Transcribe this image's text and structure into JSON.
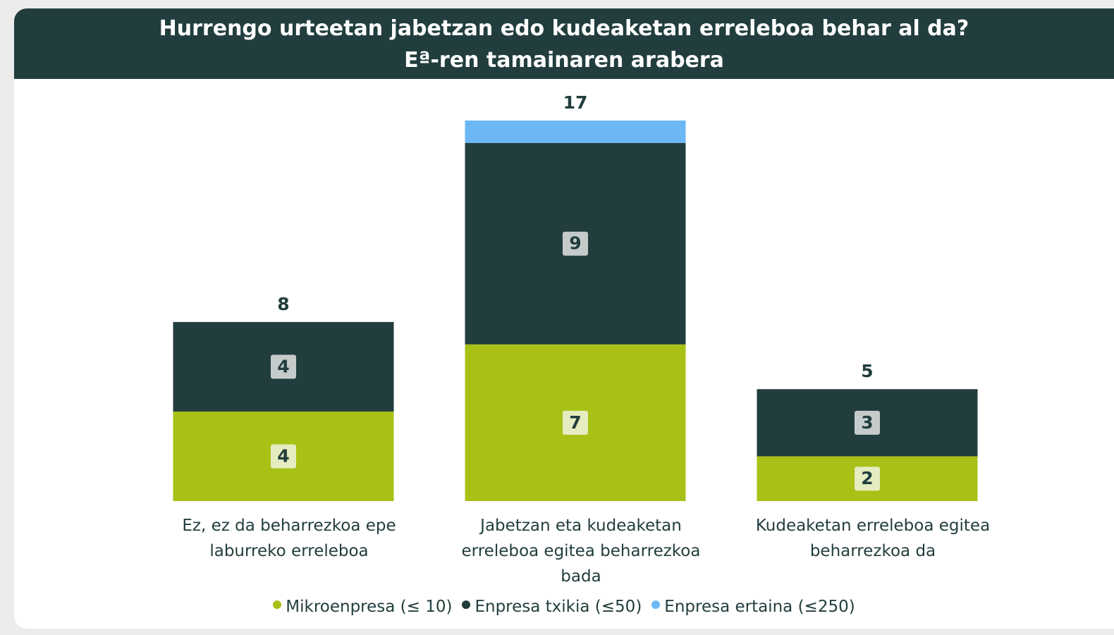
{
  "chart_data": {
    "type": "stacked_bar",
    "title": "Hurrengo urteetan jabetzan edo kudeaketan erreleboa behar al da?",
    "subtitle": "Eª-ren tamainaren arabera",
    "categories": [
      "Ez, ez da beharrezkoa epe laburreko erreleboa",
      "Jabetzan eta kudeaketan erreleboa egitea beharrezkoa bada",
      "Kudeaketan erreleboa egitea beharrezkoa da"
    ],
    "series": [
      {
        "name": "Mikroenpresa  (≤ 10)",
        "color": "#a9c116",
        "values": [
          4,
          7,
          2
        ],
        "data_labels": true
      },
      {
        "name": "Enpresa txikia (≤50)",
        "color": "#223d3d",
        "values": [
          4,
          9,
          3
        ],
        "data_labels": true
      },
      {
        "name": "Enpresa ertaina (≤250)",
        "color": "#6bb8f5",
        "values": [
          null,
          1,
          null
        ],
        "data_labels": false
      }
    ],
    "totals": [
      8,
      17,
      5
    ],
    "ylim": [
      0,
      17
    ],
    "legend": "bottom"
  }
}
